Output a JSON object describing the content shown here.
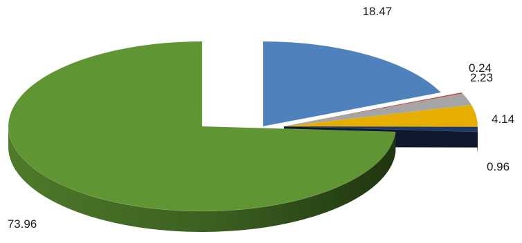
{
  "chart_data": {
    "type": "pie",
    "style": "3d-exploded",
    "title": "",
    "slices": [
      {
        "value": 18.47,
        "label": "18.47",
        "color": "#4F81BD"
      },
      {
        "value": 0.24,
        "label": "0.24",
        "color": "#C0504D"
      },
      {
        "value": 2.23,
        "label": "2.23",
        "color": "#A5A5A5"
      },
      {
        "value": 4.14,
        "label": "4.14",
        "color": "#E6AE00"
      },
      {
        "value": 0.96,
        "label": "0.96",
        "color": "#1F3864"
      },
      {
        "value": 73.96,
        "label": "73.96",
        "color": "#5F9533"
      }
    ],
    "legend": "none",
    "data_labels": "outside-end"
  }
}
